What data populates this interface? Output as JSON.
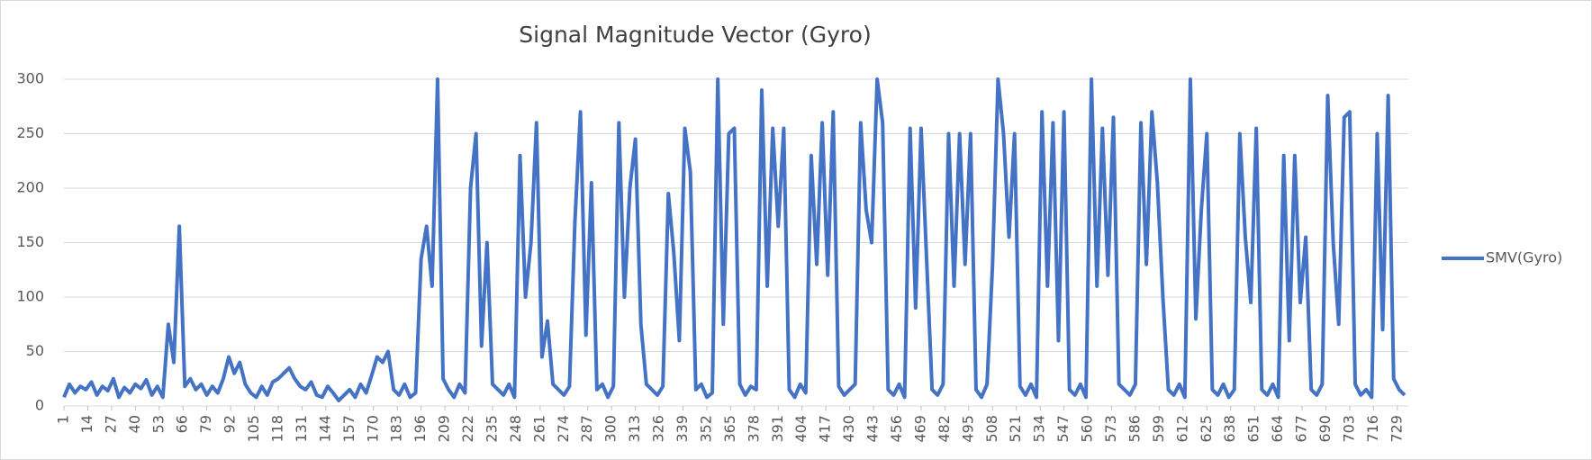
{
  "chart_data": {
    "type": "line",
    "title": "Signal Magnitude Vector (Gyro)",
    "x": [
      1,
      4,
      7,
      10,
      13,
      16,
      19,
      22,
      25,
      28,
      31,
      34,
      37,
      40,
      43,
      46,
      49,
      52,
      55,
      58,
      61,
      64,
      67,
      70,
      73,
      76,
      79,
      82,
      85,
      88,
      91,
      94,
      97,
      100,
      103,
      106,
      109,
      112,
      115,
      118,
      121,
      124,
      127,
      130,
      133,
      136,
      139,
      142,
      145,
      148,
      151,
      154,
      157,
      160,
      163,
      166,
      169,
      172,
      175,
      178,
      181,
      184,
      187,
      190,
      193,
      196,
      199,
      202,
      205,
      208,
      211,
      214,
      217,
      220,
      223,
      226,
      229,
      232,
      235,
      238,
      241,
      244,
      247,
      250,
      253,
      256,
      259,
      262,
      265,
      268,
      271,
      274,
      277,
      280,
      283,
      286,
      289,
      292,
      295,
      298,
      301,
      304,
      307,
      310,
      313,
      316,
      319,
      322,
      325,
      328,
      331,
      334,
      337,
      340,
      343,
      346,
      349,
      352,
      355,
      358,
      361,
      364,
      367,
      370,
      373,
      376,
      379,
      382,
      385,
      388,
      391,
      394,
      397,
      400,
      403,
      406,
      409,
      412,
      415,
      418,
      421,
      424,
      427,
      430,
      433,
      436,
      439,
      442,
      445,
      448,
      451,
      454,
      457,
      460,
      463,
      466,
      469,
      472,
      475,
      478,
      481,
      484,
      487,
      490,
      493,
      496,
      499,
      502,
      505,
      508,
      511,
      514,
      517,
      520,
      523,
      526,
      529,
      532,
      535,
      538,
      541,
      544,
      547,
      550,
      553,
      556,
      559,
      562,
      565,
      568,
      571,
      574,
      577,
      580,
      583,
      586,
      589,
      592,
      595,
      598,
      601,
      604,
      607,
      610,
      613,
      616,
      619,
      622,
      625,
      628,
      631,
      634,
      637,
      640,
      643,
      646,
      649,
      652,
      655,
      658,
      661,
      664,
      667,
      670,
      673,
      676,
      679,
      682,
      685,
      688,
      691,
      694,
      697,
      700,
      703,
      706,
      709,
      712,
      715,
      718,
      721,
      724,
      727,
      730,
      733
    ],
    "series": [
      {
        "name": "SMV(Gyro)",
        "color": "#4472c4",
        "values": [
          8,
          20,
          12,
          18,
          15,
          22,
          10,
          18,
          14,
          25,
          8,
          17,
          12,
          20,
          16,
          24,
          10,
          18,
          8,
          75,
          40,
          165,
          18,
          25,
          15,
          20,
          10,
          18,
          12,
          25,
          45,
          30,
          40,
          20,
          12,
          8,
          18,
          10,
          22,
          25,
          30,
          35,
          25,
          18,
          15,
          22,
          10,
          8,
          18,
          12,
          5,
          10,
          15,
          8,
          20,
          12,
          28,
          45,
          40,
          50,
          15,
          10,
          20,
          8,
          12,
          135,
          165,
          110,
          300,
          25,
          15,
          8,
          20,
          12,
          200,
          250,
          55,
          150,
          20,
          15,
          10,
          20,
          8,
          230,
          100,
          150,
          260,
          45,
          78,
          20,
          15,
          10,
          18,
          170,
          270,
          65,
          205,
          15,
          20,
          8,
          18,
          260,
          100,
          200,
          245,
          75,
          20,
          15,
          10,
          18,
          195,
          140,
          60,
          255,
          215,
          15,
          20,
          8,
          12,
          300,
          75,
          250,
          255,
          20,
          10,
          18,
          15,
          290,
          110,
          255,
          165,
          255,
          15,
          8,
          20,
          12,
          230,
          130,
          260,
          120,
          270,
          18,
          10,
          15,
          20,
          260,
          180,
          150,
          300,
          260,
          15,
          10,
          20,
          8,
          255,
          90,
          255,
          135,
          15,
          10,
          20,
          250,
          110,
          250,
          130,
          250,
          15,
          8,
          20,
          130,
          300,
          250,
          155,
          250,
          18,
          10,
          20,
          8,
          270,
          110,
          260,
          60,
          270,
          15,
          10,
          20,
          8,
          300,
          110,
          255,
          120,
          265,
          20,
          15,
          10,
          20,
          260,
          130,
          270,
          205,
          100,
          15,
          10,
          20,
          8,
          300,
          80,
          180,
          250,
          15,
          10,
          20,
          8,
          15,
          250,
          155,
          95,
          255,
          15,
          10,
          20,
          8,
          230,
          60,
          230,
          95,
          155,
          15,
          10,
          20,
          285,
          150,
          75,
          265,
          270,
          20,
          10,
          15,
          8,
          250,
          70,
          285,
          25,
          15,
          10
        ]
      }
    ],
    "xlim": [
      1,
      735
    ],
    "xticks": [
      1,
      14,
      27,
      40,
      53,
      66,
      79,
      92,
      105,
      118,
      131,
      144,
      157,
      170,
      183,
      196,
      209,
      222,
      235,
      248,
      261,
      274,
      287,
      300,
      313,
      326,
      339,
      352,
      365,
      378,
      391,
      404,
      417,
      430,
      443,
      456,
      469,
      482,
      495,
      508,
      521,
      534,
      547,
      560,
      573,
      586,
      599,
      612,
      625,
      638,
      651,
      664,
      677,
      690,
      703,
      716,
      729
    ],
    "ylim": [
      0,
      300
    ],
    "yticks": [
      0,
      50,
      100,
      150,
      200,
      250,
      300
    ],
    "grid": true,
    "legend": "right"
  }
}
